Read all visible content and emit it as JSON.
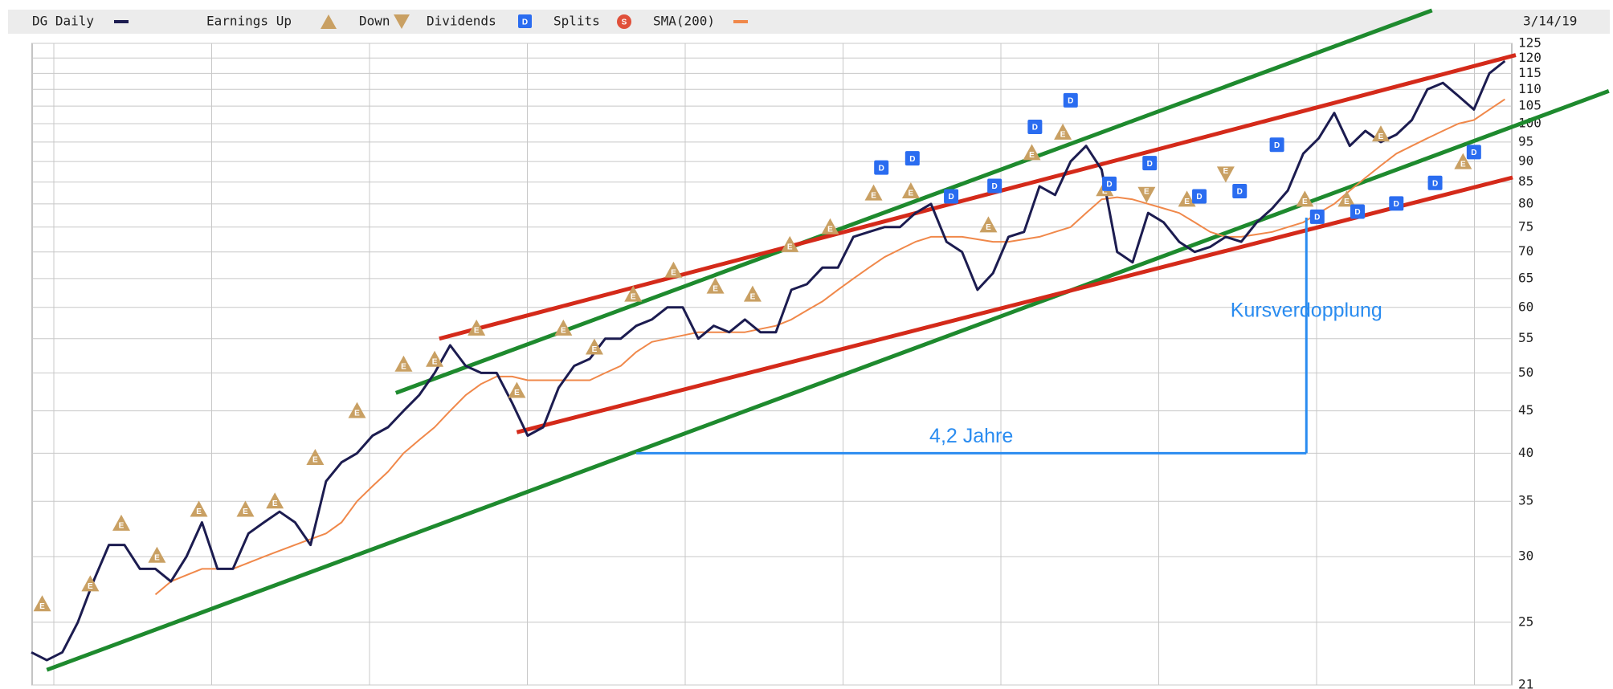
{
  "chart_data": {
    "type": "line",
    "log_scale": true,
    "grid": true,
    "date": "3/14/19",
    "legend": {
      "price": "DG Daily",
      "earnings_up": "Earnings Up",
      "earnings_down": "Down",
      "dividends": "Dividends",
      "splits": "Splits",
      "sma": "SMA(200)"
    },
    "earnings_icon": "E",
    "dividend_icon": "D",
    "split_icon": "S",
    "ylim": [
      21,
      125
    ],
    "yticks": [
      21,
      25,
      30,
      35,
      40,
      45,
      50,
      55,
      60,
      65,
      70,
      75,
      80,
      85,
      90,
      95,
      100,
      105,
      110,
      115,
      120,
      125
    ],
    "series": [
      {
        "name": "DG Daily",
        "color": "#1c1c50",
        "values": [
          23,
          22.5,
          23,
          25,
          28,
          31,
          31,
          29,
          29,
          28,
          30,
          33,
          29,
          29,
          32,
          33,
          34,
          33,
          31,
          37,
          39,
          40,
          42,
          43,
          45,
          47,
          50,
          54,
          51,
          50,
          50,
          46,
          42,
          43,
          48,
          51,
          52,
          55,
          55,
          57,
          58,
          60,
          60,
          55,
          57,
          56,
          58,
          56,
          56,
          63,
          64,
          67,
          67,
          73,
          74,
          75,
          75,
          78,
          80,
          72,
          70,
          63,
          66,
          73,
          74,
          84,
          82,
          90,
          94,
          88,
          70,
          68,
          78,
          76,
          72,
          70,
          71,
          73,
          72,
          76,
          79,
          83,
          92,
          96,
          103,
          94,
          98,
          95,
          97,
          101,
          110,
          112,
          108,
          104,
          115,
          119
        ]
      },
      {
        "name": "SMA(200)",
        "color": "#f0884a",
        "values": [
          null,
          null,
          null,
          null,
          null,
          null,
          null,
          null,
          27,
          28,
          28.5,
          29,
          29,
          29,
          29.5,
          30,
          30.5,
          31,
          31.5,
          32,
          33,
          35,
          36.5,
          38,
          40,
          41.5,
          43,
          45,
          47,
          48.5,
          49.5,
          49.5,
          49,
          49,
          49,
          49,
          49,
          50,
          51,
          53,
          54.5,
          55,
          55.5,
          56,
          56,
          56,
          56,
          56.5,
          57,
          58,
          59.5,
          61,
          63,
          65,
          67,
          69,
          70.5,
          72,
          73,
          73,
          73,
          72.5,
          72,
          72,
          72.5,
          73,
          74,
          75,
          78,
          81,
          81.5,
          81,
          80,
          79,
          78,
          76,
          74,
          73,
          73,
          73.5,
          74,
          75,
          76,
          78,
          80,
          83,
          86,
          89,
          92,
          94,
          96,
          98,
          100,
          101,
          104,
          107
        ]
      }
    ],
    "earnings_up": {
      "color": "#c9a063",
      "x": [
        0.7,
        3.8,
        5.8,
        8.1,
        10.8,
        13.8,
        15.7,
        18.3,
        21,
        24,
        26,
        28.7,
        31.3,
        34.3,
        36.3,
        38.8,
        41.4,
        44.1,
        46.5,
        48.9,
        51.5,
        54.3,
        56.7,
        61.7,
        64.5,
        66.5,
        69.2,
        74.5,
        82.1,
        84.8,
        87,
        92.3
      ],
      "values": [
        26.3,
        27.8,
        32.9,
        30.1,
        34.2,
        34.2,
        35.0,
        39.5,
        45.0,
        51.2,
        51.9,
        56.6,
        47.6,
        56.6,
        53.7,
        62.2,
        66.5,
        63.6,
        62.2,
        71.4,
        75.0,
        82.4,
        82.9,
        75.4,
        92.2,
        97.6,
        83.4,
        81.0,
        81.0,
        81.0,
        97.1,
        89.9
      ]
    },
    "earnings_down": {
      "color": "#c9a063",
      "x": [
        71.9,
        77
      ],
      "values": [
        82.2,
        87.0
      ]
    },
    "dividends": {
      "color": "#2a6cf0",
      "x": [
        54.8,
        56.8,
        59.3,
        62.1,
        64.7,
        67,
        69.5,
        72.1,
        75.3,
        77.9,
        80.3,
        82.9,
        85.5,
        88,
        90.5,
        93
      ],
      "values": [
        88.5,
        90.8,
        81.7,
        84.1,
        99.1,
        106.7,
        84.6,
        89.6,
        81.7,
        82.9,
        94.3,
        77.2,
        78.3,
        80.1,
        84.8,
        92.4
      ]
    },
    "split_color": "#e0503a",
    "trendlines": [
      {
        "color": "#1e8a2e",
        "x": [
          23.5,
          90.3
        ],
        "values": [
          47.3,
          137
        ]
      },
      {
        "color": "#1e8a2e",
        "x": [
          1,
          101.7
        ],
        "values": [
          21.9,
          109.5
        ]
      },
      {
        "color": "#d42a1a",
        "x": [
          26.3,
          95.7
        ],
        "values": [
          55,
          121
        ]
      },
      {
        "color": "#d42a1a",
        "x": [
          31.3,
          95.5
        ],
        "values": [
          42.4,
          86.1
        ]
      }
    ],
    "annotations": [
      {
        "text": "4,2 Jahre",
        "x": [
          39,
          82.2
        ],
        "values": [
          40,
          40
        ]
      },
      {
        "text": "Kursverdopplung",
        "x": [
          82.2,
          82.2
        ],
        "values": [
          40,
          77
        ]
      }
    ],
    "annotation_color": "#2a8cf0"
  }
}
